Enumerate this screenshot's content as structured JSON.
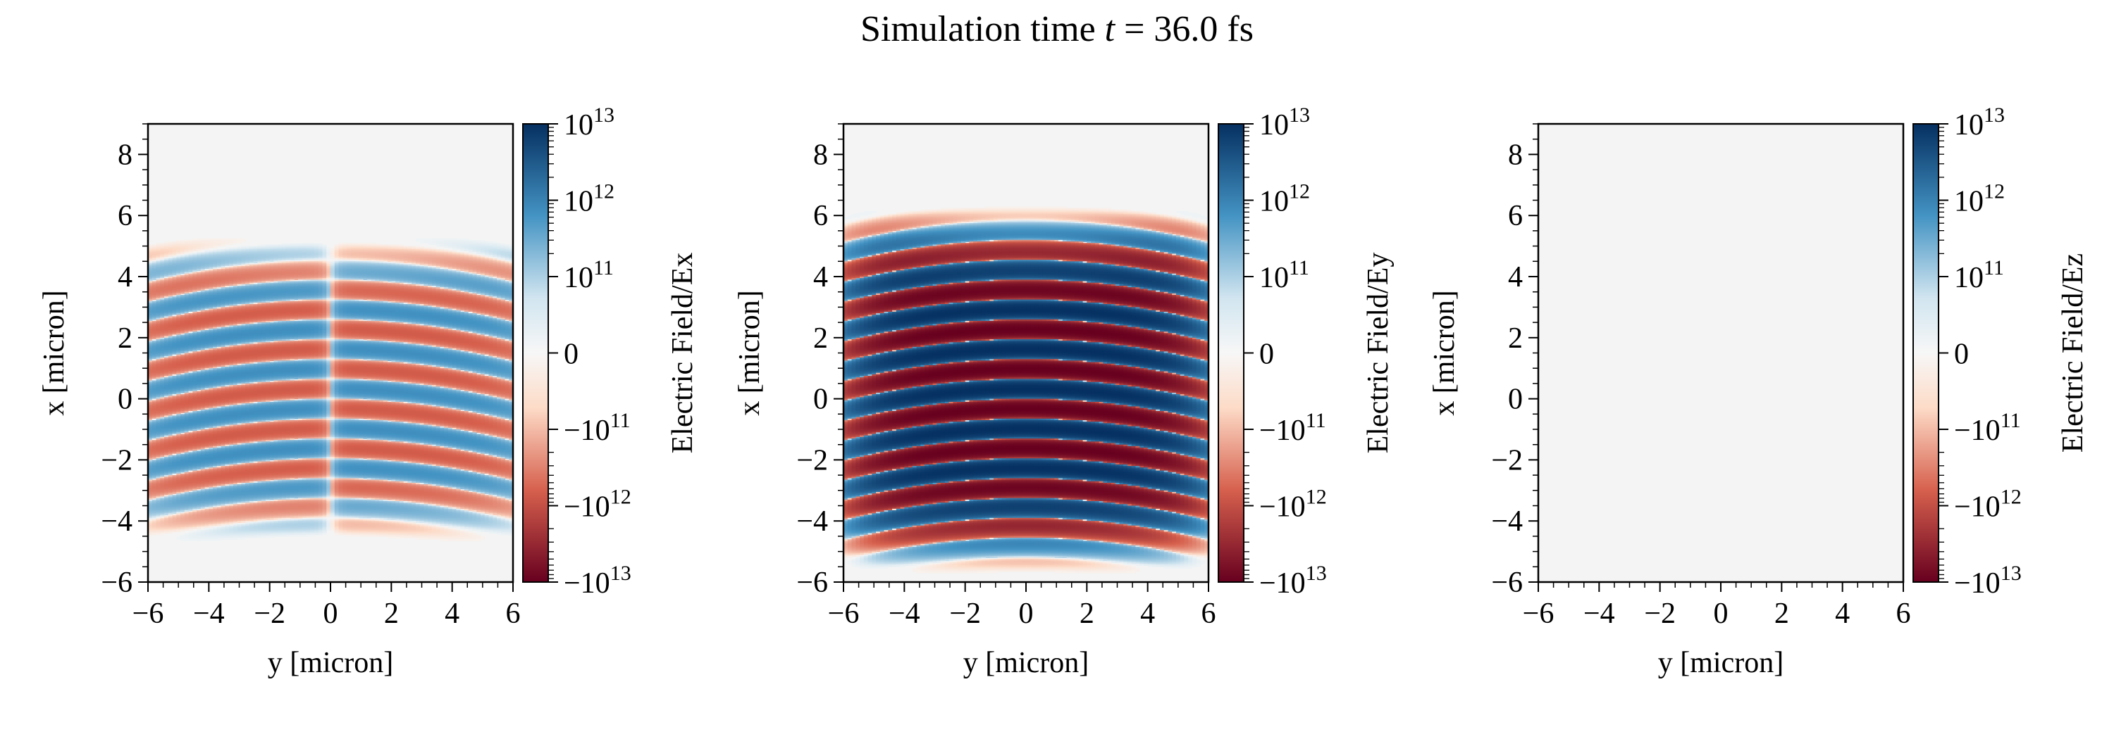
{
  "figure": {
    "title_prefix": "Simulation time ",
    "title_var": "t",
    "title_suffix": " = 36.0 fs"
  },
  "colors": {
    "background": "#f4f4f4",
    "neg_strong": "#67001f",
    "neg_mid": "#d6604d",
    "neg_light": "#fddbc7",
    "neutral": "#f7f7f7",
    "pos_light": "#d1e5f0",
    "pos_mid": "#4393c3",
    "pos_strong": "#053061"
  },
  "chart_data": [
    {
      "type": "heatmap",
      "title": "",
      "xlabel": "y [micron]",
      "ylabel": "x [micron]",
      "xlim": [
        -6,
        6
      ],
      "ylim": [
        -6,
        9
      ],
      "x_ticks": [
        -6,
        -4,
        -2,
        0,
        2,
        4,
        6
      ],
      "x_tick_labels": [
        "−6",
        "−4",
        "−2",
        "0",
        "2",
        "4",
        "6"
      ],
      "y_ticks": [
        -6,
        -4,
        -2,
        0,
        2,
        4,
        6,
        8
      ],
      "y_tick_labels": [
        "−6",
        "−4",
        "−2",
        "0",
        "2",
        "4",
        "6",
        "8"
      ],
      "colorbar_label": "Electric Field/Ex",
      "colorbar_ticks": [
        {
          "base": "10",
          "exp": "13",
          "sign": ""
        },
        {
          "base": "10",
          "exp": "12",
          "sign": ""
        },
        {
          "base": "10",
          "exp": "11",
          "sign": ""
        },
        {
          "base": "0",
          "exp": "",
          "sign": ""
        },
        {
          "base": "10",
          "exp": "11",
          "sign": "−"
        },
        {
          "base": "10",
          "exp": "12",
          "sign": "−"
        },
        {
          "base": "10",
          "exp": "13",
          "sign": "−"
        }
      ],
      "colorbar_scale": "symlog",
      "colorbar_range": [
        -10000000000000.0,
        10000000000000.0
      ],
      "field": {
        "component": "Ex",
        "pulse_center_x": 0.3,
        "pulse_halfwidth_x": 3.8,
        "stripe_spacing_x": 0.65,
        "peak_amplitude": 300000000000.0,
        "antisymmetric_in_y": true,
        "zero_at_y": 0.0,
        "tail_below_x": -3.5
      }
    },
    {
      "type": "heatmap",
      "title": "",
      "xlabel": "y [micron]",
      "ylabel": "x [micron]",
      "xlim": [
        -6,
        6
      ],
      "ylim": [
        -6,
        9
      ],
      "x_ticks": [
        -6,
        -4,
        -2,
        0,
        2,
        4,
        6
      ],
      "x_tick_labels": [
        "−6",
        "−4",
        "−2",
        "0",
        "2",
        "4",
        "6"
      ],
      "y_ticks": [
        -6,
        -4,
        -2,
        0,
        2,
        4,
        6,
        8
      ],
      "y_tick_labels": [
        "−6",
        "−4",
        "−2",
        "0",
        "2",
        "4",
        "6",
        "8"
      ],
      "colorbar_label": "Electric Field/Ey",
      "colorbar_ticks": [
        {
          "base": "10",
          "exp": "13",
          "sign": ""
        },
        {
          "base": "10",
          "exp": "12",
          "sign": ""
        },
        {
          "base": "10",
          "exp": "11",
          "sign": ""
        },
        {
          "base": "0",
          "exp": "",
          "sign": ""
        },
        {
          "base": "10",
          "exp": "11",
          "sign": "−"
        },
        {
          "base": "10",
          "exp": "12",
          "sign": "−"
        },
        {
          "base": "10",
          "exp": "13",
          "sign": "−"
        }
      ],
      "colorbar_scale": "symlog",
      "colorbar_range": [
        -10000000000000.0,
        10000000000000.0
      ],
      "field": {
        "component": "Ey",
        "pulse_center_x": 0.3,
        "pulse_halfwidth_x": 4.2,
        "stripe_spacing_x": 0.65,
        "peak_amplitude": 10000000000000.0,
        "antisymmetric_in_y": false,
        "zero_at_y": null,
        "tail_below_x": -4.2
      }
    },
    {
      "type": "heatmap",
      "title": "",
      "xlabel": "y [micron]",
      "ylabel": "x [micron]",
      "xlim": [
        -6,
        6
      ],
      "ylim": [
        -6,
        9
      ],
      "x_ticks": [
        -6,
        -4,
        -2,
        0,
        2,
        4,
        6
      ],
      "x_tick_labels": [
        "−6",
        "−4",
        "−2",
        "0",
        "2",
        "4",
        "6"
      ],
      "y_ticks": [
        -6,
        -4,
        -2,
        0,
        2,
        4,
        6,
        8
      ],
      "y_tick_labels": [
        "−6",
        "−4",
        "−2",
        "0",
        "2",
        "4",
        "6",
        "8"
      ],
      "colorbar_label": "Electric Field/Ez",
      "colorbar_ticks": [
        {
          "base": "10",
          "exp": "13",
          "sign": ""
        },
        {
          "base": "10",
          "exp": "12",
          "sign": ""
        },
        {
          "base": "10",
          "exp": "11",
          "sign": ""
        },
        {
          "base": "0",
          "exp": "",
          "sign": ""
        },
        {
          "base": "10",
          "exp": "11",
          "sign": "−"
        },
        {
          "base": "10",
          "exp": "12",
          "sign": "−"
        },
        {
          "base": "10",
          "exp": "13",
          "sign": "−"
        }
      ],
      "colorbar_scale": "symlog",
      "colorbar_range": [
        -10000000000000.0,
        10000000000000.0
      ],
      "field": {
        "component": "Ez",
        "pulse_center_x": 0.0,
        "pulse_halfwidth_x": 0.0,
        "stripe_spacing_x": 0.65,
        "peak_amplitude": 0,
        "antisymmetric_in_y": false,
        "zero_at_y": null,
        "tail_below_x": 0
      }
    }
  ]
}
